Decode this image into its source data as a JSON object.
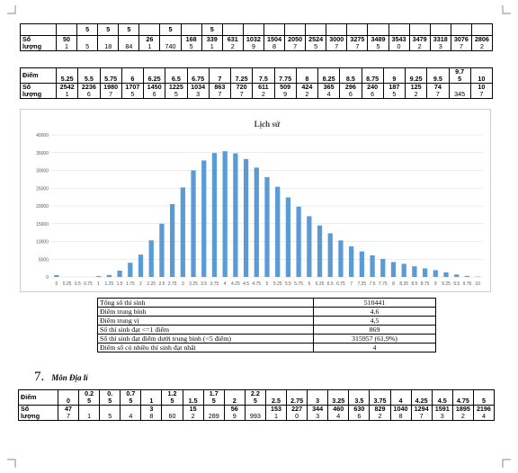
{
  "table_so_luong_1": {
    "label_1": "Số",
    "label_2": "lượng",
    "header_tops": [
      "",
      "5",
      "5",
      "5",
      "",
      "5",
      "",
      "5",
      "",
      "",
      "",
      "",
      "",
      "",
      "",
      "",
      "",
      "",
      "",
      "",
      ""
    ],
    "value_tops": [
      "50",
      "",
      "",
      "",
      "26",
      "",
      "168",
      "339",
      "631",
      "1032",
      "1504",
      "2050",
      "2524",
      "3000",
      "3275",
      "3489",
      "3543",
      "3479",
      "3318",
      "3076",
      "2806"
    ],
    "value_bots": [
      "1",
      "5",
      "18",
      "84",
      "1",
      "740",
      "5",
      "1",
      "2",
      "9",
      "8",
      "7",
      "5",
      "7",
      "7",
      "5",
      "0",
      "2",
      "3",
      "7",
      "2"
    ]
  },
  "table_diem_2": {
    "label_diem": "Điểm",
    "label_1": "Số",
    "label_2": "lượng",
    "diem": [
      {
        "t": "",
        "b": "5.25"
      },
      {
        "t": "",
        "b": "5.5"
      },
      {
        "t": "",
        "b": "5.75"
      },
      {
        "t": "",
        "b": "6"
      },
      {
        "t": "",
        "b": "6.25"
      },
      {
        "t": "",
        "b": "6.5"
      },
      {
        "t": "",
        "b": "6.75"
      },
      {
        "t": "",
        "b": "7"
      },
      {
        "t": "",
        "b": "7.25"
      },
      {
        "t": "",
        "b": "7.5"
      },
      {
        "t": "",
        "b": "7.75"
      },
      {
        "t": "",
        "b": "8"
      },
      {
        "t": "",
        "b": "8.25"
      },
      {
        "t": "",
        "b": "8.5"
      },
      {
        "t": "",
        "b": "8.75"
      },
      {
        "t": "",
        "b": "9"
      },
      {
        "t": "",
        "b": "9.25"
      },
      {
        "t": "",
        "b": "9.5"
      },
      {
        "t": "9.7",
        "b": "5"
      },
      {
        "t": "",
        "b": "10"
      }
    ],
    "so_luong": [
      {
        "t": "2542",
        "b": "1"
      },
      {
        "t": "2236",
        "b": "6"
      },
      {
        "t": "1980",
        "b": "7"
      },
      {
        "t": "1707",
        "b": "5"
      },
      {
        "t": "1450",
        "b": "6"
      },
      {
        "t": "1225",
        "b": "5"
      },
      {
        "t": "1034",
        "b": "3"
      },
      {
        "t": "863",
        "b": "7"
      },
      {
        "t": "720",
        "b": "7"
      },
      {
        "t": "611",
        "b": "2"
      },
      {
        "t": "509",
        "b": "9"
      },
      {
        "t": "424",
        "b": "2"
      },
      {
        "t": "365",
        "b": "4"
      },
      {
        "t": "296",
        "b": "6"
      },
      {
        "t": "240",
        "b": "6"
      },
      {
        "t": "187",
        "b": "5"
      },
      {
        "t": "125",
        "b": "2"
      },
      {
        "t": "74",
        "b": "7"
      },
      {
        "t": "",
        "b": "345"
      },
      {
        "t": "10",
        "b": "7"
      }
    ]
  },
  "chart_data": {
    "type": "bar",
    "title": "Lịch sử",
    "categories": [
      "0",
      "0.25",
      "0.5",
      "0.75",
      "1",
      "1.25",
      "1.5",
      "1.75",
      "2",
      "2.25",
      "2.5",
      "2.75",
      "3",
      "3.25",
      "3.5",
      "3.75",
      "4",
      "4.25",
      "4.5",
      "4.75",
      "5",
      "5.25",
      "5.5",
      "5.75",
      "6",
      "6.25",
      "6.5",
      "6.75",
      "7",
      "7.25",
      "7.5",
      "7.75",
      "8",
      "8.25",
      "8.5",
      "8.75",
      "9",
      "9.25",
      "9.5",
      "9.75",
      "10"
    ],
    "values": [
      500,
      0,
      0,
      0,
      261,
      550,
      1800,
      4000,
      6300,
      10300,
      15000,
      20500,
      25200,
      30000,
      32800,
      34900,
      35400,
      34800,
      33200,
      30800,
      28100,
      25400,
      22400,
      19800,
      17100,
      14500,
      12300,
      10300,
      8600,
      7200,
      6100,
      5100,
      4200,
      3700,
      3000,
      2400,
      1900,
      1300,
      700,
      300,
      100
    ],
    "yticks": [
      "0",
      "5000",
      "10000",
      "15000",
      "20000",
      "25000",
      "30000",
      "35000",
      "40000"
    ],
    "ylim": [
      0,
      40000
    ],
    "color": "#5b9bd5",
    "grid": true
  },
  "stats": [
    {
      "label": "Tổng số thí sinh",
      "value": "510441"
    },
    {
      "label": "Điểm trung bình",
      "value": "4,6"
    },
    {
      "label": "Điểm trung vị",
      "value": "4,5"
    },
    {
      "label": "Số thí sinh đạt <=1 điểm",
      "value": "869"
    },
    {
      "label": "Số thí sinh đạt điểm dưới trung bình (<5 điểm)",
      "value": "315957 (61,9%)"
    },
    {
      "label": "Điểm số có nhiều thí sinh đạt nhất",
      "value": "4"
    }
  ],
  "section": {
    "number": "7.",
    "title": "Môn Địa lí"
  },
  "table_dia_li": {
    "label_diem": "Điểm",
    "label_1": "Số",
    "label_2": "lượng",
    "diem": [
      {
        "t": "",
        "b": "0"
      },
      {
        "t": "0.2",
        "b": "5"
      },
      {
        "t": "0.",
        "b": "5"
      },
      {
        "t": "0.7",
        "b": "5"
      },
      {
        "t": "",
        "b": "1"
      },
      {
        "t": "1.2",
        "b": "5"
      },
      {
        "t": "",
        "b": "1.5"
      },
      {
        "t": "1.7",
        "b": "5"
      },
      {
        "t": "",
        "b": "2"
      },
      {
        "t": "2.2",
        "b": "5"
      },
      {
        "t": "",
        "b": "2.5"
      },
      {
        "t": "",
        "b": "2.75"
      },
      {
        "t": "",
        "b": "3"
      },
      {
        "t": "",
        "b": "3.25"
      },
      {
        "t": "",
        "b": "3.5"
      },
      {
        "t": "",
        "b": "3.75"
      },
      {
        "t": "",
        "b": "4"
      },
      {
        "t": "",
        "b": "4.25"
      },
      {
        "t": "",
        "b": "4.5"
      },
      {
        "t": "",
        "b": "4.75"
      },
      {
        "t": "",
        "b": "5"
      }
    ],
    "so_luong": [
      {
        "t": "47",
        "b": "7"
      },
      {
        "t": "",
        "b": "1"
      },
      {
        "t": "",
        "b": "5"
      },
      {
        "t": "",
        "b": "4"
      },
      {
        "t": "3",
        "b": "8"
      },
      {
        "t": "",
        "b": "60"
      },
      {
        "t": "15",
        "b": "2"
      },
      {
        "t": "",
        "b": "289"
      },
      {
        "t": "56",
        "b": "9"
      },
      {
        "t": "",
        "b": "993"
      },
      {
        "t": "153",
        "b": "1"
      },
      {
        "t": "227",
        "b": "0"
      },
      {
        "t": "344",
        "b": "3"
      },
      {
        "t": "460",
        "b": "4"
      },
      {
        "t": "630",
        "b": "6"
      },
      {
        "t": "829",
        "b": "2"
      },
      {
        "t": "1040",
        "b": "8"
      },
      {
        "t": "1294",
        "b": "7"
      },
      {
        "t": "1591",
        "b": "3"
      },
      {
        "t": "1895",
        "b": "2"
      },
      {
        "t": "2196",
        "b": "4"
      }
    ]
  }
}
